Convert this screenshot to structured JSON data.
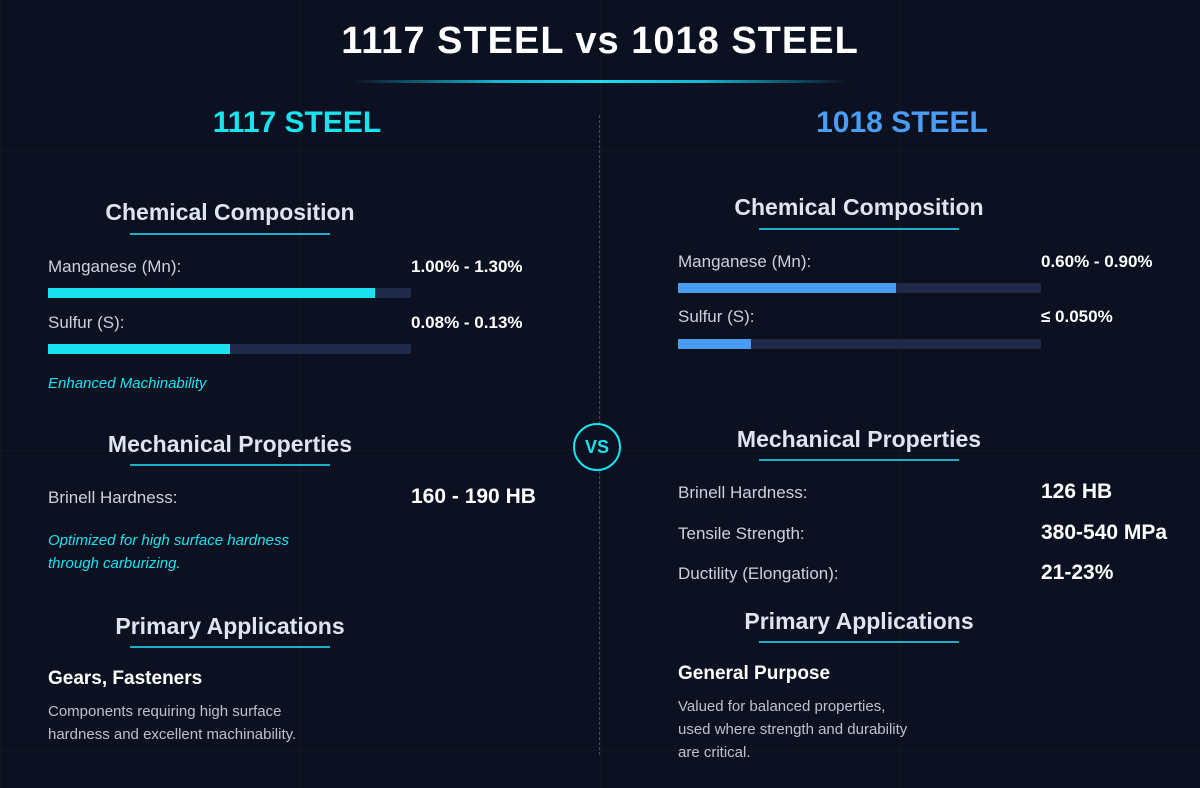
{
  "title": "1117 STEEL vs 1018 STEEL",
  "vs_label": "VS",
  "left": {
    "title": "1117 STEEL",
    "chemical": {
      "heading": "Chemical Composition",
      "items": [
        {
          "label": "Manganese (Mn):",
          "value": "1.00% - 1.30%",
          "fill": 0.9
        },
        {
          "label": "Sulfur (S):",
          "value": "0.08% - 0.13%",
          "fill": 0.5
        }
      ],
      "note": "Enhanced Machinability"
    },
    "mechanical": {
      "heading": "Mechanical Properties",
      "items": [
        {
          "label": "Brinell Hardness:",
          "value": "160 - 190 HB"
        }
      ],
      "note_line1": "Optimized for high surface hardness",
      "note_line2": "through carburizing."
    },
    "applications": {
      "heading": "Primary Applications",
      "title": "Gears, Fasteners",
      "desc_line1": "Components requiring high surface",
      "desc_line2": "hardness and excellent machinability."
    }
  },
  "right": {
    "title": "1018 STEEL",
    "chemical": {
      "heading": "Chemical Composition",
      "items": [
        {
          "label": "Manganese (Mn):",
          "value": "0.60% - 0.90%",
          "fill": 0.6
        },
        {
          "label": "Sulfur (S):",
          "value": "≤ 0.050%",
          "fill": 0.2
        }
      ]
    },
    "mechanical": {
      "heading": "Mechanical Properties",
      "items": [
        {
          "label": "Brinell Hardness:",
          "value": "126 HB"
        },
        {
          "label": "Tensile Strength:",
          "value": "380-540 MPa"
        },
        {
          "label": "Ductility (Elongation):",
          "value": "21-23%"
        }
      ]
    },
    "applications": {
      "heading": "Primary Applications",
      "title": "General Purpose",
      "desc_line1": "Valued for balanced properties,",
      "desc_line2": "used where strength and durability",
      "desc_line3": "are critical."
    }
  },
  "colors": {
    "background": "#0b1120",
    "accent_cyan": "#18e3ef",
    "accent_blue": "#4a9df5",
    "bar_track": "#1e2a48"
  }
}
